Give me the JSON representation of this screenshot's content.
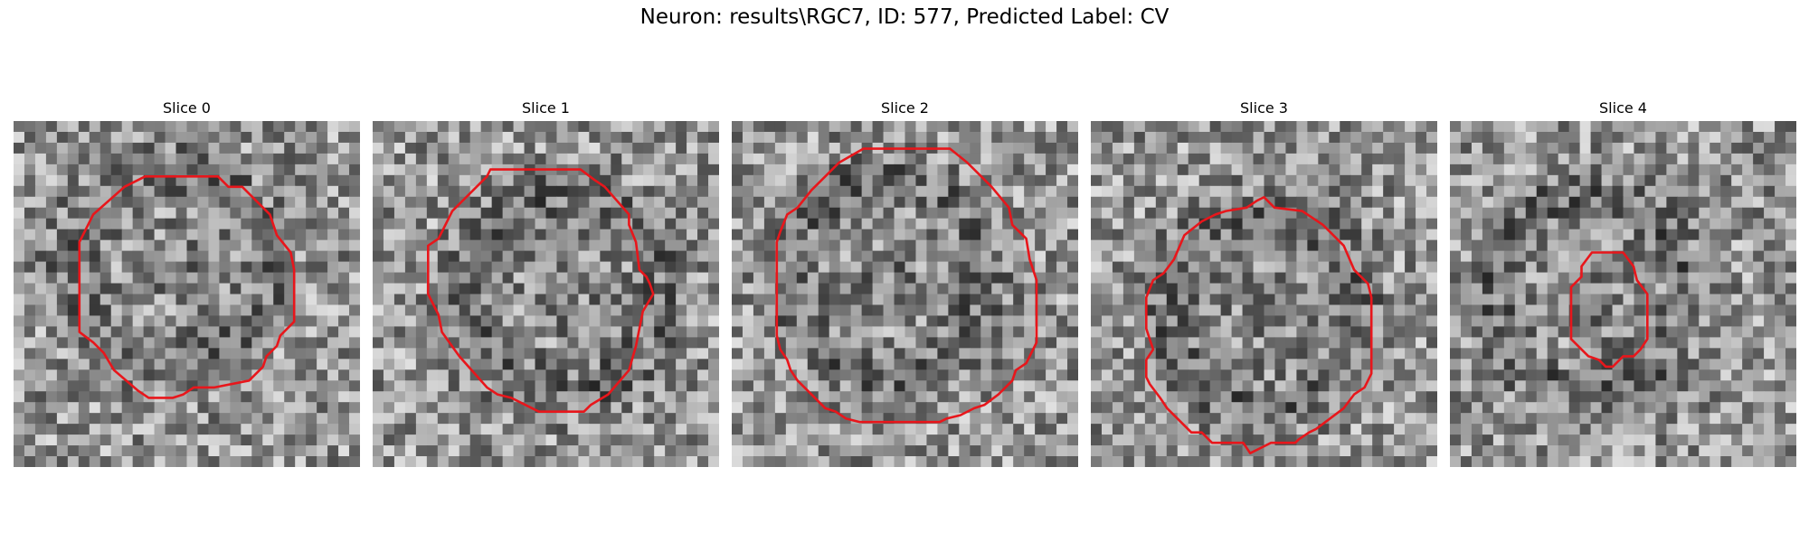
{
  "figure": {
    "title": "Neuron: results\\RGC7, ID: 577, Predicted Label: CV",
    "contour_color": "#e8161b"
  },
  "panels": [
    {
      "title": "Slice 0",
      "seed": 11,
      "dark_ring": [
        0.3,
        0.78
      ],
      "dark_center": [
        0.45,
        0.42
      ],
      "contour": [
        [
          0.38,
          0.16
        ],
        [
          0.59,
          0.16
        ],
        [
          0.62,
          0.19
        ],
        [
          0.66,
          0.19
        ],
        [
          0.74,
          0.27
        ],
        [
          0.76,
          0.33
        ],
        [
          0.8,
          0.38
        ],
        [
          0.81,
          0.43
        ],
        [
          0.81,
          0.58
        ],
        [
          0.77,
          0.62
        ],
        [
          0.76,
          0.65
        ],
        [
          0.73,
          0.68
        ],
        [
          0.72,
          0.71
        ],
        [
          0.68,
          0.75
        ],
        [
          0.58,
          0.77
        ],
        [
          0.52,
          0.77
        ],
        [
          0.49,
          0.79
        ],
        [
          0.46,
          0.8
        ],
        [
          0.39,
          0.8
        ],
        [
          0.36,
          0.78
        ],
        [
          0.29,
          0.72
        ],
        [
          0.26,
          0.67
        ],
        [
          0.23,
          0.64
        ],
        [
          0.19,
          0.61
        ],
        [
          0.19,
          0.35
        ],
        [
          0.23,
          0.27
        ],
        [
          0.32,
          0.19
        ]
      ]
    },
    {
      "title": "Slice 1",
      "seed": 23,
      "dark_ring": [
        0.5,
        0.6
      ],
      "dark_center": [
        0.55,
        0.5
      ],
      "contour": [
        [
          0.34,
          0.14
        ],
        [
          0.6,
          0.14
        ],
        [
          0.64,
          0.17
        ],
        [
          0.67,
          0.19
        ],
        [
          0.74,
          0.27
        ],
        [
          0.74,
          0.3
        ],
        [
          0.76,
          0.35
        ],
        [
          0.77,
          0.43
        ],
        [
          0.79,
          0.45
        ],
        [
          0.8,
          0.47
        ],
        [
          0.81,
          0.5
        ],
        [
          0.78,
          0.55
        ],
        [
          0.76,
          0.65
        ],
        [
          0.74,
          0.72
        ],
        [
          0.68,
          0.79
        ],
        [
          0.63,
          0.82
        ],
        [
          0.61,
          0.84
        ],
        [
          0.48,
          0.84
        ],
        [
          0.44,
          0.82
        ],
        [
          0.4,
          0.8
        ],
        [
          0.36,
          0.79
        ],
        [
          0.33,
          0.77
        ],
        [
          0.25,
          0.68
        ],
        [
          0.2,
          0.61
        ],
        [
          0.19,
          0.56
        ],
        [
          0.16,
          0.5
        ],
        [
          0.16,
          0.36
        ],
        [
          0.19,
          0.34
        ],
        [
          0.23,
          0.26
        ],
        [
          0.3,
          0.19
        ],
        [
          0.33,
          0.16
        ]
      ]
    },
    {
      "title": "Slice 2",
      "seed": 37,
      "dark_ring": [
        0.25,
        0.8
      ],
      "dark_center": [
        0.45,
        0.45
      ],
      "contour": [
        [
          0.38,
          0.08
        ],
        [
          0.63,
          0.08
        ],
        [
          0.68,
          0.12
        ],
        [
          0.72,
          0.16
        ],
        [
          0.75,
          0.19
        ],
        [
          0.8,
          0.25
        ],
        [
          0.81,
          0.3
        ],
        [
          0.85,
          0.34
        ],
        [
          0.86,
          0.4
        ],
        [
          0.88,
          0.46
        ],
        [
          0.88,
          0.64
        ],
        [
          0.85,
          0.7
        ],
        [
          0.82,
          0.72
        ],
        [
          0.81,
          0.75
        ],
        [
          0.77,
          0.79
        ],
        [
          0.73,
          0.82
        ],
        [
          0.7,
          0.83
        ],
        [
          0.66,
          0.85
        ],
        [
          0.62,
          0.86
        ],
        [
          0.6,
          0.87
        ],
        [
          0.37,
          0.87
        ],
        [
          0.33,
          0.86
        ],
        [
          0.3,
          0.84
        ],
        [
          0.27,
          0.83
        ],
        [
          0.23,
          0.79
        ],
        [
          0.19,
          0.75
        ],
        [
          0.17,
          0.72
        ],
        [
          0.16,
          0.69
        ],
        [
          0.14,
          0.66
        ],
        [
          0.13,
          0.62
        ],
        [
          0.13,
          0.35
        ],
        [
          0.14,
          0.32
        ],
        [
          0.16,
          0.27
        ],
        [
          0.19,
          0.25
        ],
        [
          0.23,
          0.2
        ],
        [
          0.27,
          0.16
        ],
        [
          0.31,
          0.12
        ]
      ]
    },
    {
      "title": "Slice 3",
      "seed": 53,
      "dark_ring": [
        0.35,
        0.85
      ],
      "dark_center": [
        0.5,
        0.55
      ],
      "contour": [
        [
          0.39,
          0.26
        ],
        [
          0.45,
          0.25
        ],
        [
          0.48,
          0.23
        ],
        [
          0.5,
          0.22
        ],
        [
          0.53,
          0.25
        ],
        [
          0.61,
          0.26
        ],
        [
          0.64,
          0.28
        ],
        [
          0.67,
          0.3
        ],
        [
          0.73,
          0.36
        ],
        [
          0.76,
          0.43
        ],
        [
          0.8,
          0.47
        ],
        [
          0.81,
          0.51
        ],
        [
          0.81,
          0.73
        ],
        [
          0.79,
          0.77
        ],
        [
          0.76,
          0.79
        ],
        [
          0.73,
          0.83
        ],
        [
          0.69,
          0.86
        ],
        [
          0.65,
          0.89
        ],
        [
          0.63,
          0.9
        ],
        [
          0.6,
          0.92
        ],
        [
          0.59,
          0.93
        ],
        [
          0.52,
          0.93
        ],
        [
          0.46,
          0.96
        ],
        [
          0.44,
          0.93
        ],
        [
          0.35,
          0.93
        ],
        [
          0.32,
          0.9
        ],
        [
          0.29,
          0.9
        ],
        [
          0.26,
          0.87
        ],
        [
          0.22,
          0.83
        ],
        [
          0.2,
          0.8
        ],
        [
          0.17,
          0.76
        ],
        [
          0.16,
          0.74
        ],
        [
          0.16,
          0.69
        ],
        [
          0.18,
          0.66
        ],
        [
          0.16,
          0.6
        ],
        [
          0.16,
          0.51
        ],
        [
          0.18,
          0.46
        ],
        [
          0.21,
          0.44
        ],
        [
          0.24,
          0.4
        ],
        [
          0.27,
          0.33
        ],
        [
          0.32,
          0.29
        ],
        [
          0.36,
          0.27
        ]
      ]
    },
    {
      "title": "Slice 4",
      "seed": 71,
      "dark_ring": [
        0.2,
        0.6
      ],
      "dark_center": [
        0.4,
        0.5
      ],
      "contour": [
        [
          0.38,
          0.42
        ],
        [
          0.41,
          0.38
        ],
        [
          0.5,
          0.38
        ],
        [
          0.53,
          0.42
        ],
        [
          0.54,
          0.46
        ],
        [
          0.57,
          0.5
        ],
        [
          0.57,
          0.63
        ],
        [
          0.55,
          0.66
        ],
        [
          0.53,
          0.68
        ],
        [
          0.51,
          0.68
        ],
        [
          0.5,
          0.68
        ],
        [
          0.47,
          0.71
        ],
        [
          0.46,
          0.71
        ],
        [
          0.45,
          0.71
        ],
        [
          0.43,
          0.69
        ],
        [
          0.4,
          0.68
        ],
        [
          0.38,
          0.66
        ],
        [
          0.35,
          0.63
        ],
        [
          0.35,
          0.48
        ],
        [
          0.38,
          0.45
        ]
      ]
    }
  ]
}
